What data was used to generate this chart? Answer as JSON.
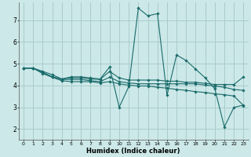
{
  "xlabel": "Humidex (Indice chaleur)",
  "background_color": "#cce8e8",
  "grid_color": "#aacccc",
  "line_color": "#1a6b6b",
  "xlim": [
    -0.5,
    23.5
  ],
  "ylim": [
    1.5,
    7.8
  ],
  "yticks": [
    2,
    3,
    4,
    5,
    6,
    7
  ],
  "xticks": [
    0,
    1,
    2,
    3,
    4,
    5,
    6,
    7,
    8,
    9,
    10,
    11,
    12,
    13,
    14,
    15,
    16,
    17,
    18,
    19,
    20,
    21,
    22,
    23
  ],
  "lines": [
    {
      "x": [
        0,
        1,
        2,
        3,
        4,
        5,
        6,
        7,
        8,
        9,
        10,
        11,
        12,
        13,
        14,
        15,
        16,
        17,
        18,
        19,
        20,
        21,
        22,
        23
      ],
      "y": [
        4.8,
        4.8,
        4.65,
        4.5,
        4.3,
        4.4,
        4.4,
        4.35,
        4.3,
        4.85,
        3.0,
        3.95,
        7.55,
        7.2,
        7.3,
        3.55,
        5.4,
        5.15,
        4.75,
        4.35,
        3.85,
        2.1,
        3.0,
        3.1
      ]
    },
    {
      "x": [
        0,
        1,
        2,
        3,
        4,
        5,
        6,
        7,
        8,
        9,
        10,
        11,
        12,
        13,
        14,
        15,
        16,
        17,
        18,
        19,
        20,
        21,
        22,
        23
      ],
      "y": [
        4.8,
        4.8,
        4.6,
        4.4,
        4.3,
        4.35,
        4.35,
        4.3,
        4.28,
        4.65,
        4.35,
        4.25,
        4.25,
        4.25,
        4.25,
        4.2,
        4.2,
        4.15,
        4.15,
        4.1,
        4.05,
        4.05,
        4.05,
        4.4
      ]
    },
    {
      "x": [
        0,
        1,
        2,
        3,
        4,
        5,
        6,
        7,
        8,
        9,
        10,
        11,
        12,
        13,
        14,
        15,
        16,
        17,
        18,
        19,
        20,
        21,
        22,
        23
      ],
      "y": [
        4.8,
        4.8,
        4.6,
        4.4,
        4.28,
        4.28,
        4.28,
        4.22,
        4.18,
        4.38,
        4.18,
        4.12,
        4.08,
        4.08,
        4.08,
        4.08,
        4.08,
        4.08,
        4.08,
        4.02,
        3.98,
        3.92,
        3.82,
        3.78
      ]
    },
    {
      "x": [
        0,
        1,
        2,
        3,
        4,
        5,
        6,
        7,
        8,
        9,
        10,
        11,
        12,
        13,
        14,
        15,
        16,
        17,
        18,
        19,
        20,
        21,
        22,
        23
      ],
      "y": [
        4.8,
        4.8,
        4.55,
        4.38,
        4.22,
        4.18,
        4.18,
        4.18,
        4.12,
        4.18,
        4.08,
        4.02,
        3.98,
        3.98,
        3.92,
        3.88,
        3.82,
        3.78,
        3.72,
        3.68,
        3.62,
        3.58,
        3.52,
        3.08
      ]
    }
  ]
}
